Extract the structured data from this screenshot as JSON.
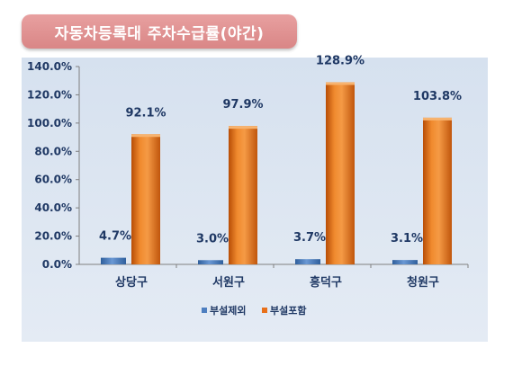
{
  "title": "자동차등록대 주차수급률(야간)",
  "colors": {
    "title_bg": "#db8a8a",
    "series_excluded": "#4e7fc0",
    "series_included": "#e8701a"
  },
  "chart_data": {
    "type": "bar",
    "title": "자동차등록대 주차수급률(야간)",
    "categories": [
      "상당구",
      "서원구",
      "흥덕구",
      "청원구"
    ],
    "series": [
      {
        "name": "부설제외",
        "values": [
          4.7,
          3.0,
          3.7,
          3.1
        ],
        "labels": [
          "4.7%",
          "3.0%",
          "3.7%",
          "3.1%"
        ]
      },
      {
        "name": "부설포함",
        "values": [
          92.1,
          97.9,
          128.9,
          103.8
        ],
        "labels": [
          "92.1%",
          "97.9%",
          "128.9%",
          "103.8%"
        ]
      }
    ],
    "yticks": [
      "0.0%",
      "20.0%",
      "40.0%",
      "60.0%",
      "80.0%",
      "100.0%",
      "120.0%",
      "140.0%"
    ],
    "ylim": [
      0,
      140
    ],
    "xlabel": "",
    "ylabel": "",
    "grid": false,
    "legend": "bottom"
  }
}
